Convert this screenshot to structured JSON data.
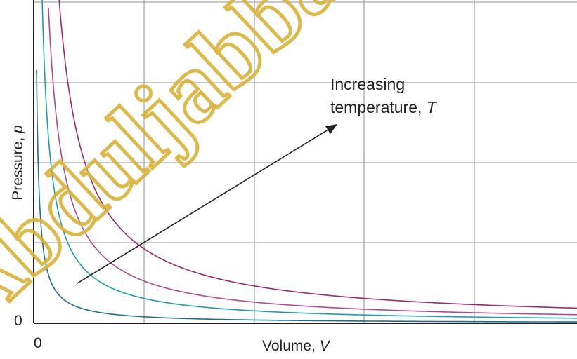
{
  "chart_data": {
    "type": "line",
    "xlabel": "Volume, ",
    "xlabel_var": "V",
    "ylabel": "Pressure, ",
    "ylabel_var": "p",
    "x_tick_labels": [
      "0"
    ],
    "y_tick_labels": [
      "0"
    ],
    "grid": true,
    "series": [
      {
        "k": 1.3,
        "color": "#1f6f8b"
      },
      {
        "k": 5.0,
        "color": "#1f9cb0"
      },
      {
        "k": 8.5,
        "color": "#b04a8d"
      },
      {
        "k": 15.0,
        "color": "#9c2a6d"
      }
    ],
    "annotation": {
      "line1": "Increasing",
      "line2": "temperature, ",
      "var": "T"
    },
    "watermark": {
      "text": "Abduljabbar",
      "color": "#d9b23a"
    }
  }
}
